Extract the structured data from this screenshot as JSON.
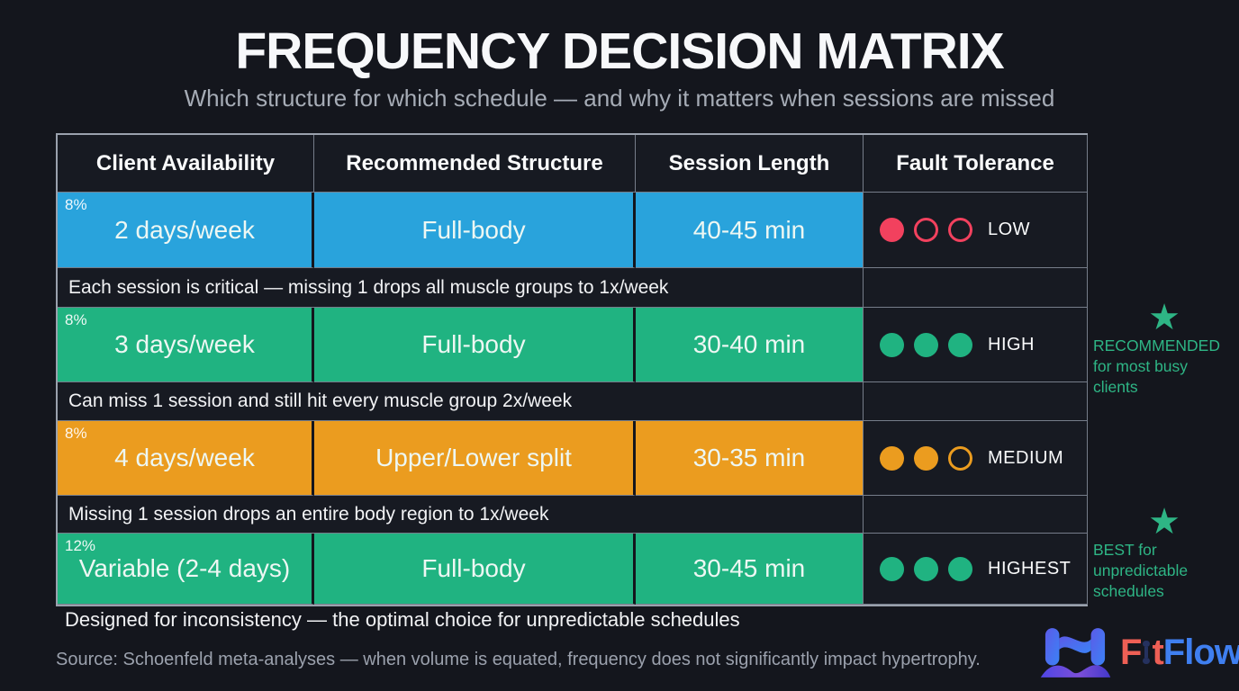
{
  "page": {
    "title": "FREQUENCY DECISION MATRIX",
    "subtitle": "Which structure for which schedule — and why it matters when sessions are missed"
  },
  "table": {
    "headers": [
      "Client Availability",
      "Recommended Structure",
      "Session Length",
      "Fault Tolerance"
    ],
    "rows": [
      {
        "percent": "8%",
        "availability": "2 days/week",
        "structure": "Full-body",
        "session_length": "40-45 min",
        "row_color": "#29a3dc",
        "fault": {
          "label": "LOW",
          "filled": 1,
          "total": 3,
          "color": "#f2415e"
        },
        "note": "Each session is critical — missing 1 drops all muscle groups to 1x/week"
      },
      {
        "percent": "8%",
        "availability": "3 days/week",
        "structure": "Full-body",
        "session_length": "30-40 min",
        "row_color": "#20b381",
        "fault": {
          "label": "HIGH",
          "filled": 3,
          "total": 3,
          "color": "#20b381"
        },
        "note": "Can miss 1 session and still hit every muscle group 2x/week"
      },
      {
        "percent": "8%",
        "availability": "4 days/week",
        "structure": "Upper/Lower split",
        "session_length": "30-35 min",
        "row_color": "#eb9c1f",
        "fault": {
          "label": "MEDIUM",
          "filled": 2,
          "total": 3,
          "color": "#eb9c1f"
        },
        "note": "Missing 1 session drops an entire body region to 1x/week"
      },
      {
        "percent": "12%",
        "availability": "Variable (2-4 days)",
        "structure": "Full-body",
        "session_length": "30-45 min",
        "row_color": "#20b381",
        "fault": {
          "label": "HIGHEST",
          "filled": 3,
          "total": 3,
          "color": "#20b381"
        }
      }
    ]
  },
  "annotations": [
    {
      "icon": "star-icon",
      "star": "★",
      "heading": "RECOMMENDED",
      "body": "for most busy clients",
      "color": "#2eb585"
    },
    {
      "icon": "star-icon",
      "star": "★",
      "heading": "BEST for",
      "body": "unpredictable schedules",
      "color": "#2eb585"
    }
  ],
  "footer": {
    "bottom_note": "Designed for inconsistency — the optimal choice for unpredictable schedules",
    "source": "Source: Schoenfeld meta-analyses — when volume is equated, frequency does not significantly impact hypertrophy."
  },
  "logo": {
    "fit_f": "F",
    "fit_t": "t",
    "flow": "Flow"
  },
  "chart_data": {
    "type": "table",
    "title": "FREQUENCY DECISION MATRIX",
    "subtitle": "Which structure for which schedule — and why it matters when sessions are missed",
    "columns": [
      "Client Availability",
      "Recommended Structure",
      "Session Length",
      "Fault Tolerance"
    ],
    "rows": [
      [
        "2 days/week",
        "Full-body",
        "40-45 min",
        "LOW (1/3)"
      ],
      [
        "3 days/week",
        "Full-body",
        "30-40 min",
        "HIGH (3/3)"
      ],
      [
        "4 days/week",
        "Upper/Lower split",
        "30-35 min",
        "MEDIUM (2/3)"
      ],
      [
        "Variable (2-4 days)",
        "Full-body",
        "30-45 min",
        "HIGHEST (3/3)"
      ]
    ],
    "row_notes": [
      "Each session is critical — missing 1 drops all muscle groups to 1x/week",
      "Can miss 1 session and still hit every muscle group 2x/week",
      "Missing 1 session drops an entire body region to 1x/week",
      "Designed for inconsistency — the optimal choice for unpredictable schedules"
    ],
    "row_percent_badges": [
      "8%",
      "8%",
      "8%",
      "12%"
    ],
    "fault_tolerance_filled_dots": [
      1,
      3,
      2,
      3
    ],
    "row_colors": [
      "#29a3dc",
      "#20b381",
      "#eb9c1f",
      "#20b381"
    ]
  }
}
